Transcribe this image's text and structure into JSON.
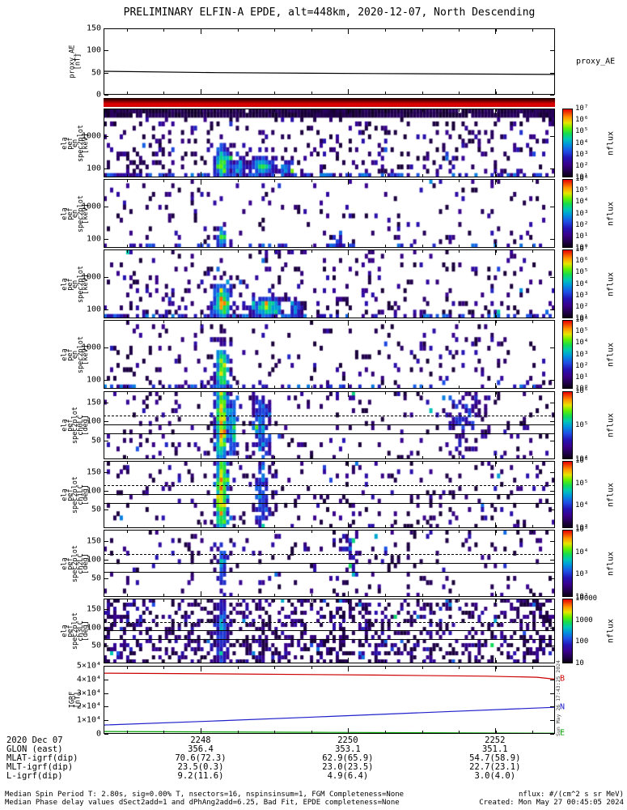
{
  "title": "PRELIMINARY ELFIN-A EPDE, alt=448km, 2020-12-07, North Descending",
  "footer": {
    "line1": "Median Spin Period T: 2.80s, sig=0.00% T, nsectors=16, nspinsinsum=1, FGM Completeness=None",
    "line2": "Median Phase delay values dSect2add=1 and dPhAng2add=6.25, Bad Fit, EPDE completeness=None",
    "units_note": "nflux: #/(cm^2 s sr MeV)",
    "created": "Created: Mon May 27 00:45:05 2024",
    "side_timestamp": "Sun May 26 17:43:25 2024"
  },
  "ephemeris": {
    "row_labels": [
      "2020 Dec 07",
      "GLON (east)",
      "MLAT-igrf(dip)",
      "MLT-igrf(dip)",
      "L-igrf(dip)"
    ],
    "columns": [
      {
        "frac": 0.215,
        "values": [
          "2248",
          "356.4",
          "70.6(72.3)",
          "23.5(0.3)",
          "9.2(11.6)"
        ]
      },
      {
        "frac": 0.541,
        "values": [
          "2250",
          "353.1",
          "62.9(65.9)",
          "23.0(23.5)",
          "4.9(6.4)"
        ]
      },
      {
        "frac": 0.867,
        "values": [
          "2252",
          "351.1",
          "54.7(58.9)",
          "22.7(23.1)",
          "3.0(4.0)"
        ]
      }
    ]
  },
  "xaxis": {
    "majors": [
      0.215,
      0.541,
      0.867
    ],
    "minor_start": 0.0518,
    "minor_step": 0.0817
  },
  "colormap": [
    [
      0,
      "#0a0014"
    ],
    [
      0.08,
      "#20004a"
    ],
    [
      0.18,
      "#3a008c"
    ],
    [
      0.28,
      "#2414b4"
    ],
    [
      0.38,
      "#1e50e6"
    ],
    [
      0.48,
      "#0096dc"
    ],
    [
      0.56,
      "#00c8b4"
    ],
    [
      0.64,
      "#14dc50"
    ],
    [
      0.72,
      "#64f000"
    ],
    [
      0.8,
      "#e6e600"
    ],
    [
      0.88,
      "#ff9600"
    ],
    [
      1,
      "#e60000"
    ]
  ],
  "chart_data": [
    {
      "id": "proxy_ae",
      "type": "line",
      "ylabel_lines": [
        "proxy_AE",
        "[nT]"
      ],
      "right_label": "proxy_AE",
      "ylim": [
        0,
        150
      ],
      "yticks": [
        {
          "v": 0,
          "label": "0"
        },
        {
          "v": 50,
          "label": "50"
        },
        {
          "v": 100,
          "label": "100"
        },
        {
          "v": 150,
          "label": "150"
        }
      ],
      "series": [
        {
          "name": "proxy_AE",
          "color": "#000000",
          "points": [
            [
              0,
              53
            ],
            [
              0.25,
              50
            ],
            [
              0.6,
              48
            ],
            [
              1,
              46
            ]
          ]
        }
      ]
    },
    {
      "id": "quality_bar",
      "type": "strip",
      "colors": [
        [
          0,
          "#140000"
        ],
        [
          0.35,
          "#7a0000"
        ],
        [
          0.65,
          "#e00000"
        ],
        [
          1,
          "#c80000"
        ]
      ]
    },
    {
      "id": "en0",
      "type": "spectrogram",
      "ylabel_lines": [
        "ela",
        "pef",
        "en",
        "spec2plot",
        "[keV]"
      ],
      "yscale": "log",
      "ylim": [
        55,
        6800
      ],
      "yticks": [
        {
          "v": 100,
          "label": "100"
        },
        {
          "v": 1000,
          "label": "1000"
        }
      ],
      "colorbar_title": "nflux",
      "colorbar_labels": [
        "10⁷",
        "10⁶",
        "10⁵",
        "10⁴",
        "10³",
        "10²",
        "10¹"
      ],
      "pattern": {
        "seed": 11,
        "density": 0.13,
        "grad": 0.6,
        "top_band": 0.13,
        "bottom_row": 0.75,
        "blobs": [
          {
            "x": 0.263,
            "y": 0.8,
            "rx": 0.016,
            "ry": 0.22,
            "amp": 0.62
          },
          {
            "x": 0.3,
            "y": 0.86,
            "rx": 0.012,
            "ry": 0.12,
            "amp": 0.4
          },
          {
            "x": 0.352,
            "y": 0.84,
            "rx": 0.022,
            "ry": 0.14,
            "amp": 0.52
          },
          {
            "x": 0.405,
            "y": 0.87,
            "rx": 0.014,
            "ry": 0.1,
            "amp": 0.38
          }
        ]
      }
    },
    {
      "id": "en1",
      "type": "spectrogram",
      "ylabel_lines": [
        "ela",
        "pef",
        "en",
        "spec2plot",
        "[keV]"
      ],
      "yscale": "log",
      "ylim": [
        55,
        6800
      ],
      "yticks": [
        {
          "v": 100,
          "label": "100"
        },
        {
          "v": 1000,
          "label": "1000"
        }
      ],
      "colorbar_title": "nflux",
      "colorbar_labels": [
        "10⁶",
        "10⁵",
        "10⁴",
        "10³",
        "10²",
        "10¹",
        "10⁰"
      ],
      "pattern": {
        "seed": 22,
        "density": 0.055,
        "grad": 0.5,
        "bottom_row": 0.35,
        "blobs": [
          {
            "x": 0.263,
            "y": 0.86,
            "rx": 0.012,
            "ry": 0.14,
            "amp": 0.5
          },
          {
            "x": 0.52,
            "y": 0.9,
            "rx": 0.01,
            "ry": 0.08,
            "amp": 0.3
          }
        ]
      }
    },
    {
      "id": "en2",
      "type": "spectrogram",
      "ylabel_lines": [
        "ela",
        "pef",
        "en",
        "spec2plot",
        "[keV]"
      ],
      "yscale": "log",
      "ylim": [
        55,
        6800
      ],
      "yticks": [
        {
          "v": 100,
          "label": "100"
        },
        {
          "v": 1000,
          "label": "1000"
        }
      ],
      "colorbar_title": "nflux",
      "colorbar_labels": [
        "10⁷",
        "10⁶",
        "10⁵",
        "10⁴",
        "10³",
        "10²",
        "10¹"
      ],
      "pattern": {
        "seed": 33,
        "density": 0.1,
        "grad": 0.6,
        "bottom_row": 0.6,
        "blobs": [
          {
            "x": 0.263,
            "y": 0.78,
            "rx": 0.018,
            "ry": 0.26,
            "amp": 0.68
          },
          {
            "x": 0.36,
            "y": 0.84,
            "rx": 0.03,
            "ry": 0.15,
            "amp": 0.55
          },
          {
            "x": 0.425,
            "y": 0.88,
            "rx": 0.012,
            "ry": 0.1,
            "amp": 0.35
          }
        ]
      }
    },
    {
      "id": "en3",
      "type": "spectrogram",
      "ylabel_lines": [
        "ela",
        "pef",
        "en",
        "spec2plot",
        "[keV]"
      ],
      "yscale": "log",
      "ylim": [
        55,
        6800
      ],
      "yticks": [
        {
          "v": 100,
          "label": "100"
        },
        {
          "v": 1000,
          "label": "1000"
        }
      ],
      "colorbar_title": "nflux",
      "colorbar_labels": [
        "10⁶",
        "10⁵",
        "10⁴",
        "10³",
        "10²",
        "10¹",
        "10⁰"
      ],
      "pattern": {
        "seed": 44,
        "density": 0.07,
        "grad": 0.5,
        "bottom_row": 0.4,
        "blobs": [
          {
            "x": 0.263,
            "y": 0.72,
            "rx": 0.013,
            "ry": 0.3,
            "amp": 0.65
          }
        ]
      }
    },
    {
      "id": "ch0",
      "type": "spectrogram",
      "ylabel_lines": [
        "ela",
        "pef",
        "spec2plot",
        "ch0LC",
        "[deg]"
      ],
      "yscale": "linear",
      "ylim": [
        0,
        180
      ],
      "yticks": [
        {
          "v": 50,
          "label": "50"
        },
        {
          "v": 100,
          "label": "100"
        },
        {
          "v": 150,
          "label": "150"
        }
      ],
      "overlay_lines": [
        {
          "v": 113,
          "style": "dashed"
        },
        {
          "v": 90,
          "style": "solid"
        },
        {
          "v": 66,
          "style": "solid"
        }
      ],
      "colorbar_title": "nflux",
      "colorbar_labels": [
        "10⁶",
        "10⁵",
        "10⁴"
      ],
      "pattern": {
        "seed": 55,
        "density": 0.11,
        "blobs": [
          {
            "x": 0.262,
            "y": 0.45,
            "rx": 0.013,
            "ry": 0.75,
            "amp": 0.7
          },
          {
            "x": 0.287,
            "y": 0.5,
            "rx": 0.008,
            "ry": 0.5,
            "amp": 0.42
          },
          {
            "x": 0.35,
            "y": 0.5,
            "rx": 0.02,
            "ry": 0.6,
            "amp": 0.3
          },
          {
            "x": 0.8,
            "y": 0.35,
            "rx": 0.03,
            "ry": 0.4,
            "amp": 0.18
          }
        ]
      }
    },
    {
      "id": "ch1",
      "type": "spectrogram",
      "ylabel_lines": [
        "ela",
        "pef",
        "spec2plot",
        "ch1LC",
        "[deg]"
      ],
      "yscale": "linear",
      "ylim": [
        0,
        180
      ],
      "yticks": [
        {
          "v": 50,
          "label": "50"
        },
        {
          "v": 100,
          "label": "100"
        },
        {
          "v": 150,
          "label": "150"
        }
      ],
      "overlay_lines": [
        {
          "v": 113,
          "style": "dashed"
        },
        {
          "v": 90,
          "style": "solid"
        },
        {
          "v": 66,
          "style": "solid"
        }
      ],
      "colorbar_title": "nflux",
      "colorbar_labels": [
        "10⁶",
        "10⁵",
        "10⁴",
        "10³"
      ],
      "pattern": {
        "seed": 66,
        "density": 0.1,
        "blobs": [
          {
            "x": 0.262,
            "y": 0.5,
            "rx": 0.013,
            "ry": 0.8,
            "amp": 0.72
          },
          {
            "x": 0.35,
            "y": 0.55,
            "rx": 0.015,
            "ry": 0.5,
            "amp": 0.3
          }
        ]
      }
    },
    {
      "id": "ch2",
      "type": "spectrogram",
      "ylabel_lines": [
        "ela",
        "pef",
        "spec2plot",
        "ch2LC",
        "[deg]"
      ],
      "yscale": "linear",
      "ylim": [
        0,
        180
      ],
      "yticks": [
        {
          "v": 50,
          "label": "50"
        },
        {
          "v": 100,
          "label": "100"
        },
        {
          "v": 150,
          "label": "150"
        }
      ],
      "overlay_lines": [
        {
          "v": 113,
          "style": "dashed"
        },
        {
          "v": 90,
          "style": "solid"
        },
        {
          "v": 66,
          "style": "solid"
        }
      ],
      "colorbar_title": "nflux",
      "colorbar_labels": [
        "10⁵",
        "10⁴",
        "10³",
        "10²"
      ],
      "pattern": {
        "seed": 77,
        "density": 0.085,
        "blobs": [
          {
            "x": 0.262,
            "y": 0.55,
            "rx": 0.01,
            "ry": 0.4,
            "amp": 0.35
          },
          {
            "x": 0.55,
            "y": 0.3,
            "rx": 0.02,
            "ry": 0.3,
            "amp": 0.18
          }
        ]
      }
    },
    {
      "id": "ch3",
      "type": "spectrogram",
      "ylabel_lines": [
        "ela",
        "pef",
        "spec2plot",
        "ch3LC",
        "[deg]"
      ],
      "yscale": "linear",
      "ylim": [
        0,
        180
      ],
      "yticks": [
        {
          "v": 50,
          "label": "50"
        },
        {
          "v": 100,
          "label": "100"
        },
        {
          "v": 150,
          "label": "150"
        }
      ],
      "overlay_lines": [
        {
          "v": 113,
          "style": "dashed"
        },
        {
          "v": 90,
          "style": "solid"
        },
        {
          "v": 66,
          "style": "solid"
        }
      ],
      "colorbar_title": "nflux",
      "colorbar_labels": [
        "10000",
        "1000",
        "100",
        "10"
      ],
      "pattern": {
        "seed": 88,
        "density": 0.38,
        "blobs": [
          {
            "x": 0.262,
            "y": 0.5,
            "rx": 0.012,
            "ry": 0.6,
            "amp": 0.28
          }
        ]
      }
    },
    {
      "id": "igrf",
      "type": "line",
      "ylabel_lines": [
        "IGRF",
        "[nT]"
      ],
      "ylim": [
        0,
        50000
      ],
      "yticks": [
        {
          "v": 0,
          "label": "0"
        },
        {
          "v": 10000,
          "label": "1×10⁴"
        },
        {
          "v": 20000,
          "label": "2×10⁴"
        },
        {
          "v": 30000,
          "label": "3×10⁴"
        },
        {
          "v": 40000,
          "label": "4×10⁴"
        },
        {
          "v": 50000,
          "label": "5×10⁴"
        }
      ],
      "series": [
        {
          "name": "B",
          "color": "#cc0000",
          "points": [
            [
              0,
              44600
            ],
            [
              0.3,
              44000
            ],
            [
              0.6,
              43200
            ],
            [
              0.85,
              42400
            ],
            [
              0.96,
              41600
            ],
            [
              1,
              40200
            ]
          ]
        },
        {
          "name": "N",
          "color": "#2020cc",
          "points": [
            [
              0,
              6500
            ],
            [
              0.25,
              9500
            ],
            [
              0.5,
              12800
            ],
            [
              0.75,
              16200
            ],
            [
              1,
              19500
            ]
          ]
        },
        {
          "name": "E",
          "color": "#00a000",
          "points": [
            [
              0,
              1700
            ],
            [
              0.5,
              1100
            ],
            [
              1,
              500
            ]
          ]
        }
      ]
    }
  ]
}
